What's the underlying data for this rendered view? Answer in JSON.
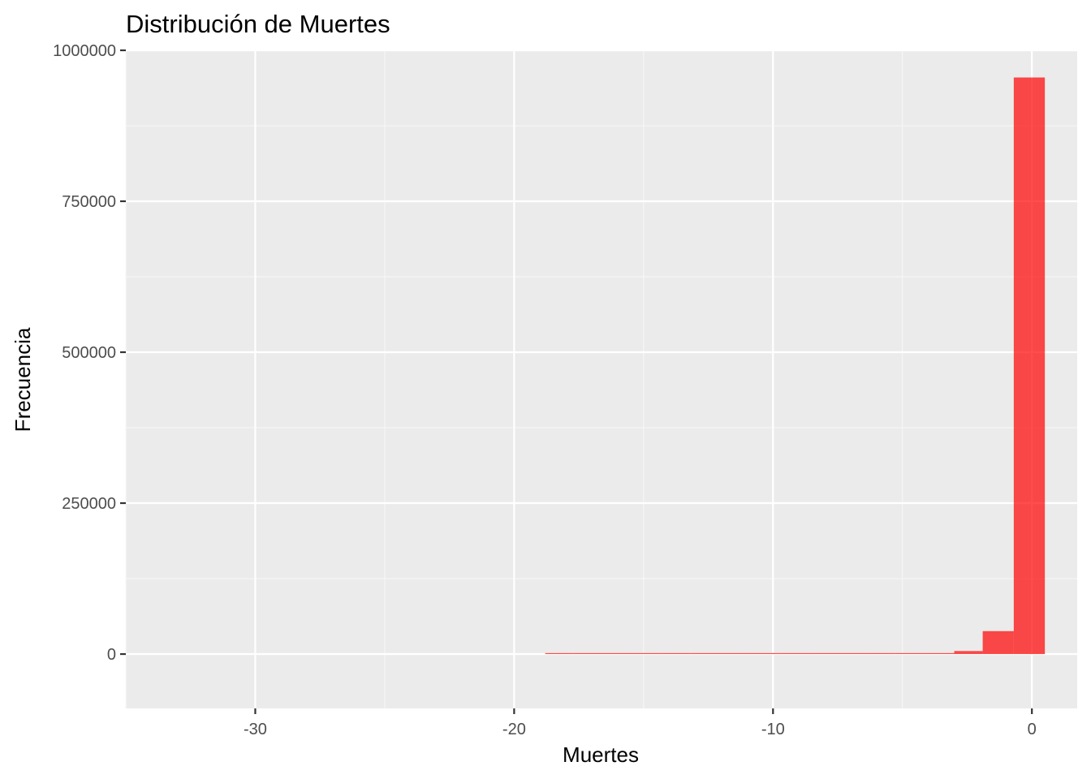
{
  "colors": {
    "panel": "#ebebeb",
    "grid_major": "#ffffff",
    "grid_minor": "#f7f7f7",
    "bar_fill": "#ff0000",
    "bar_opacity": 0.7,
    "tick_mark": "#333333",
    "tick_text": "#4d4d4d"
  },
  "chart_data": {
    "type": "bar",
    "subtype": "histogram",
    "title": "Distribución de Muertes",
    "xlabel": "Muertes",
    "ylabel": "Frecuencia",
    "xlim": [
      -35,
      1.75
    ],
    "ylim": [
      -90000,
      1000000
    ],
    "x_ticks": [
      -30,
      -20,
      -10,
      0
    ],
    "x_tick_labels": [
      "-30",
      "-20",
      "-10",
      "0"
    ],
    "y_ticks": [
      0,
      250000,
      500000,
      750000,
      1000000
    ],
    "y_tick_labels": [
      "0",
      "250000",
      "500000",
      "750000",
      "1000000"
    ],
    "grid": true,
    "bins": [
      {
        "x0": -18.8,
        "x1": -17.7,
        "count": 10
      },
      {
        "x0": -17.7,
        "x1": -16.5,
        "count": 10
      },
      {
        "x0": -16.5,
        "x1": -15.4,
        "count": 20
      },
      {
        "x0": -15.4,
        "x1": -14.3,
        "count": 20
      },
      {
        "x0": -14.3,
        "x1": -13.2,
        "count": 30
      },
      {
        "x0": -13.2,
        "x1": -12.0,
        "count": 40
      },
      {
        "x0": -12.0,
        "x1": -10.9,
        "count": 50
      },
      {
        "x0": -10.9,
        "x1": -9.8,
        "count": 60
      },
      {
        "x0": -9.8,
        "x1": -8.6,
        "count": 80
      },
      {
        "x0": -8.6,
        "x1": -7.5,
        "count": 110
      },
      {
        "x0": -7.5,
        "x1": -6.4,
        "count": 150
      },
      {
        "x0": -6.4,
        "x1": -5.3,
        "count": 220
      },
      {
        "x0": -5.3,
        "x1": -4.1,
        "count": 350
      },
      {
        "x0": -4.1,
        "x1": -3.0,
        "count": 1500
      },
      {
        "x0": -3.0,
        "x1": -1.9,
        "count": 5000
      },
      {
        "x0": -1.9,
        "x1": -0.7,
        "count": 38000
      },
      {
        "x0": -0.7,
        "x1": 0.5,
        "count": 955000
      }
    ]
  }
}
